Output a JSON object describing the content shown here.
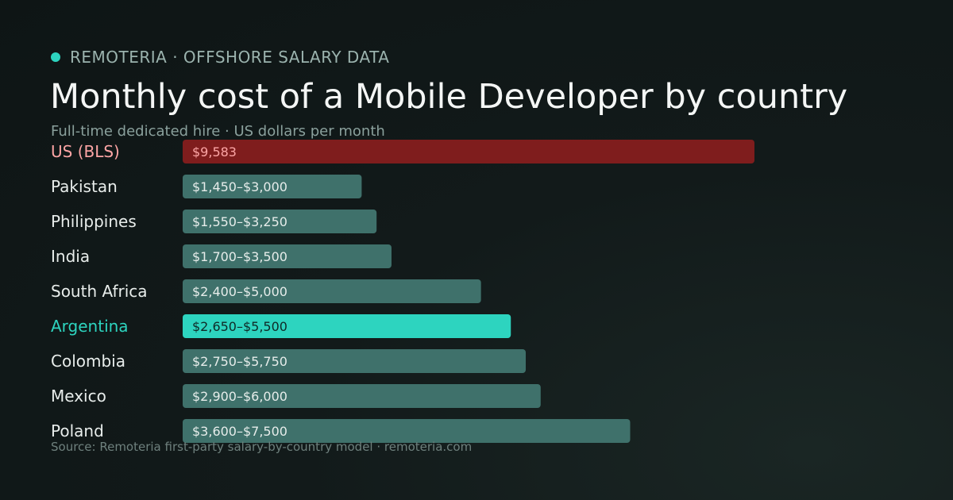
{
  "header": {
    "brand": "REMOTERIA · OFFSHORE SALARY DATA",
    "title": "Monthly cost of a Mobile Developer by country",
    "subtitle": "Full-time dedicated hire · US dollars per month"
  },
  "footer": {
    "source": "Source: Remoteria first-party salary-by-country model · remoteria.com"
  },
  "colors": {
    "accent": "#2dd4bf",
    "benchmark": "#7f1d1d",
    "bar": "#3f716b",
    "benchmark_label": "#fca5a5"
  },
  "chart_data": {
    "type": "bar",
    "orientation": "horizontal",
    "title": "Monthly cost of a Mobile Developer by country",
    "subtitle": "Full-time dedicated hire · US dollars per month",
    "unit": "US dollars per month",
    "legend": "none",
    "grid": false,
    "xlim": [
      0,
      9583
    ],
    "rows": [
      {
        "category": "US (BLS)",
        "min": 9583,
        "max": 9583,
        "label": "$9,583",
        "role": "benchmark"
      },
      {
        "category": "Pakistan",
        "min": 1450,
        "max": 3000,
        "label": "$1,450–$3,000",
        "role": "normal"
      },
      {
        "category": "Philippines",
        "min": 1550,
        "max": 3250,
        "label": "$1,550–$3,250",
        "role": "normal"
      },
      {
        "category": "India",
        "min": 1700,
        "max": 3500,
        "label": "$1,700–$3,500",
        "role": "normal"
      },
      {
        "category": "South Africa",
        "min": 2400,
        "max": 5000,
        "label": "$2,400–$5,000",
        "role": "normal"
      },
      {
        "category": "Argentina",
        "min": 2650,
        "max": 5500,
        "label": "$2,650–$5,500",
        "role": "highlight"
      },
      {
        "category": "Colombia",
        "min": 2750,
        "max": 5750,
        "label": "$2,750–$5,750",
        "role": "normal"
      },
      {
        "category": "Mexico",
        "min": 2900,
        "max": 6000,
        "label": "$2,900–$6,000",
        "role": "normal"
      },
      {
        "category": "Poland",
        "min": 3600,
        "max": 7500,
        "label": "$3,600–$7,500",
        "role": "normal"
      }
    ]
  }
}
